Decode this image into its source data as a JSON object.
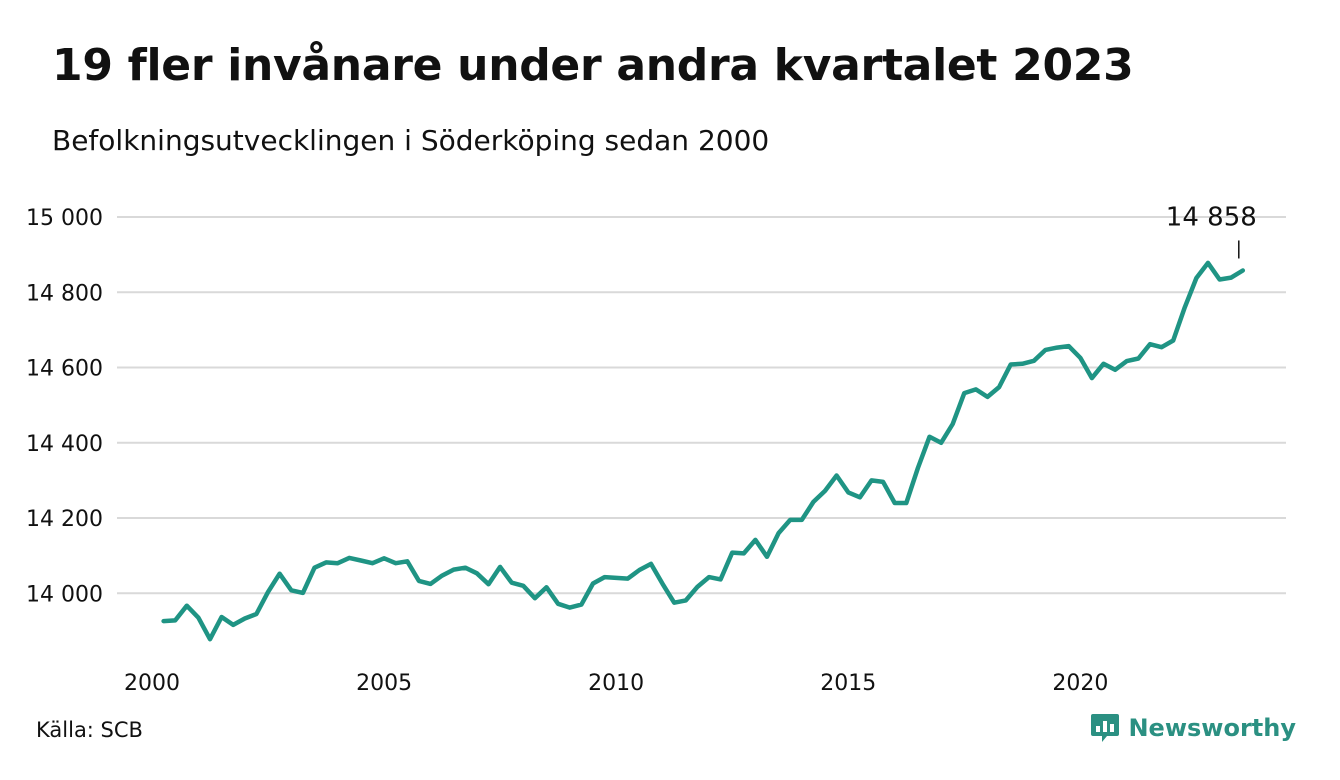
{
  "title": "19 fler invånare under andra kvartalet 2023",
  "subtitle": "Befolkningsutvecklingen i Söderköping sedan 2000",
  "source": "Källa: SCB",
  "brand": {
    "name": "Newsworthy",
    "icon": "newsworthy-logo-icon",
    "color": "#2b9082"
  },
  "chart_data": {
    "type": "line",
    "title": "19 fler invånare under andra kvartalet 2023",
    "subtitle": "Befolkningsutvecklingen i Söderköping sedan 2000",
    "xlabel": "",
    "ylabel": "",
    "xlim": [
      2000,
      2024
    ],
    "ylim": [
      13820,
      15040
    ],
    "x_ticks": [
      2000,
      2005,
      2010,
      2015,
      2020
    ],
    "x_tick_labels": [
      "2000",
      "2005",
      "2010",
      "2015",
      "2020"
    ],
    "y_ticks": [
      14000,
      14200,
      14400,
      14600,
      14800,
      15000
    ],
    "y_tick_labels": [
      "14 000",
      "14 200",
      "14 400",
      "14 600",
      "14 800",
      "15 000"
    ],
    "grid": true,
    "line_color": "#1f9484",
    "annotation": {
      "label": "14 858",
      "value": 14858
    },
    "series": [
      {
        "x": [
          2000.25,
          2000.5,
          2000.75,
          2001.0,
          2001.25,
          2001.5,
          2001.75,
          2002.0,
          2002.25,
          2002.5,
          2002.75,
          2003.0,
          2003.25,
          2003.5,
          2003.75,
          2004.0,
          2004.25,
          2004.5,
          2004.75,
          2005.0,
          2005.25,
          2005.5,
          2005.75,
          2006.0,
          2006.25,
          2006.5,
          2006.75,
          2007.0,
          2007.25,
          2007.5,
          2007.75,
          2008.0,
          2008.25,
          2008.5,
          2008.75,
          2009.0,
          2009.25,
          2009.5,
          2009.75,
          2010.0,
          2010.25,
          2010.5,
          2010.75,
          2011.0,
          2011.25,
          2011.5,
          2011.75,
          2012.0,
          2012.25,
          2012.5,
          2012.75,
          2013.0,
          2013.25,
          2013.5,
          2013.75,
          2014.0,
          2014.25,
          2014.5,
          2014.75,
          2015.0,
          2015.25,
          2015.5,
          2015.75,
          2016.0,
          2016.25,
          2016.5,
          2016.75,
          2017.0,
          2017.25,
          2017.5,
          2017.75,
          2018.0,
          2018.25,
          2018.5,
          2018.75,
          2019.0,
          2019.25,
          2019.5,
          2019.75,
          2020.0,
          2020.25,
          2020.5,
          2020.75,
          2021.0,
          2021.25,
          2021.5,
          2021.75,
          2022.0,
          2022.25,
          2022.5,
          2022.75,
          2023.0,
          2023.25,
          2023.5
        ],
        "values": [
          13926,
          13928,
          13967,
          13935,
          13878,
          13937,
          13916,
          13933,
          13945,
          14003,
          14052,
          14008,
          14001,
          14068,
          14082,
          14080,
          14094,
          14087,
          14080,
          14093,
          14080,
          14085,
          14033,
          14025,
          14047,
          14063,
          14068,
          14053,
          14024,
          14070,
          14028,
          14020,
          13987,
          14016,
          13972,
          13962,
          13970,
          14026,
          14043,
          14041,
          14039,
          14062,
          14078,
          14025,
          13975,
          13981,
          14017,
          14043,
          14037,
          14108,
          14106,
          14142,
          14097,
          14160,
          14195,
          14195,
          14243,
          14272,
          14313,
          14268,
          14255,
          14300,
          14296,
          14240,
          14240,
          14333,
          14416,
          14400,
          14450,
          14532,
          14542,
          14522,
          14548,
          14608,
          14610,
          14618,
          14647,
          14653,
          14657,
          14626,
          14572,
          14610,
          14594,
          14617,
          14624,
          14662,
          14654,
          14672,
          14760,
          14838,
          14878,
          14834,
          14839,
          14858
        ]
      }
    ]
  }
}
